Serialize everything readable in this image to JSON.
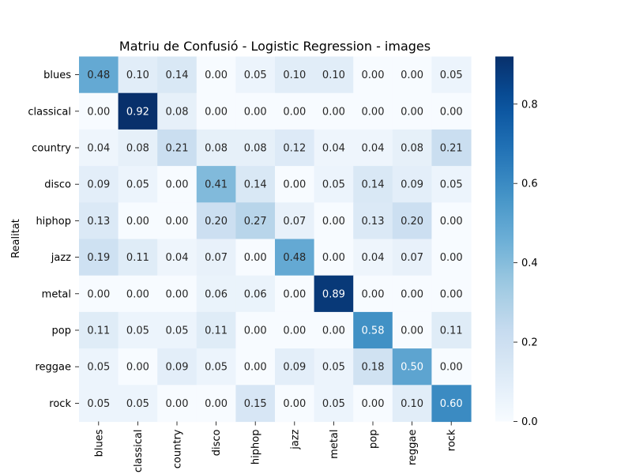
{
  "chart_data": {
    "type": "heatmap",
    "title": "Matriu de Confusió - Logistic Regression - images",
    "ylabel": "Realitat",
    "xlabel": "",
    "x_categories": [
      "blues",
      "classical",
      "country",
      "disco",
      "hiphop",
      "jazz",
      "metal",
      "pop",
      "reggae",
      "rock"
    ],
    "y_categories": [
      "blues",
      "classical",
      "country",
      "disco",
      "hiphop",
      "jazz",
      "metal",
      "pop",
      "reggae",
      "rock"
    ],
    "values": [
      [
        0.48,
        0.1,
        0.14,
        0.0,
        0.05,
        0.1,
        0.1,
        0.0,
        0.0,
        0.05
      ],
      [
        0.0,
        0.92,
        0.08,
        0.0,
        0.0,
        0.0,
        0.0,
        0.0,
        0.0,
        0.0
      ],
      [
        0.04,
        0.08,
        0.21,
        0.08,
        0.08,
        0.12,
        0.04,
        0.04,
        0.08,
        0.21
      ],
      [
        0.09,
        0.05,
        0.0,
        0.41,
        0.14,
        0.0,
        0.05,
        0.14,
        0.09,
        0.05
      ],
      [
        0.13,
        0.0,
        0.0,
        0.2,
        0.27,
        0.07,
        0.0,
        0.13,
        0.2,
        0.0
      ],
      [
        0.19,
        0.11,
        0.04,
        0.07,
        0.0,
        0.48,
        0.0,
        0.04,
        0.07,
        0.0
      ],
      [
        0.0,
        0.0,
        0.0,
        0.06,
        0.06,
        0.0,
        0.89,
        0.0,
        0.0,
        0.0
      ],
      [
        0.11,
        0.05,
        0.05,
        0.11,
        0.0,
        0.0,
        0.0,
        0.58,
        0.0,
        0.11
      ],
      [
        0.05,
        0.0,
        0.09,
        0.05,
        0.0,
        0.09,
        0.05,
        0.18,
        0.5,
        0.0
      ],
      [
        0.05,
        0.05,
        0.0,
        0.0,
        0.15,
        0.0,
        0.05,
        0.0,
        0.1,
        0.6
      ]
    ],
    "colormap": "Blues",
    "colorbar": {
      "range": [
        0.0,
        0.92
      ],
      "ticks": [
        0.0,
        0.2,
        0.4,
        0.6,
        0.8
      ],
      "tick_labels": [
        "0.0",
        "0.2",
        "0.4",
        "0.6",
        "0.8"
      ]
    },
    "grid": false,
    "legend": "colorbar-right"
  }
}
